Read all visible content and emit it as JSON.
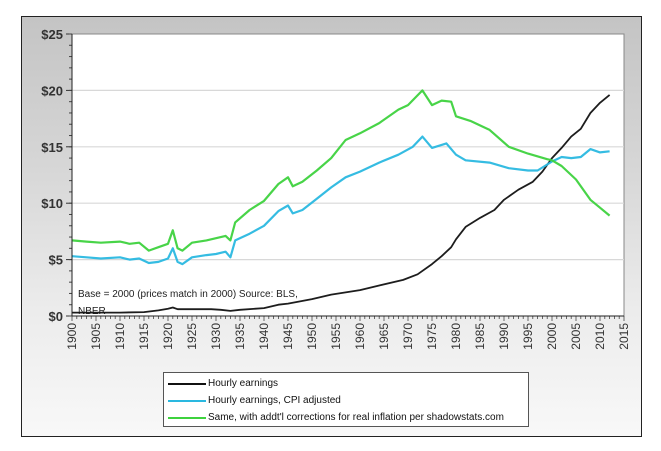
{
  "chart_data": {
    "type": "line",
    "title": "",
    "xlabel": "",
    "ylabel": "",
    "xlim": [
      1900,
      2015
    ],
    "ylim": [
      0,
      25
    ],
    "grid": true,
    "x_ticks": [
      "1900",
      "1905",
      "1910",
      "1915",
      "1920",
      "1925",
      "1930",
      "1935",
      "1940",
      "1945",
      "1950",
      "1955",
      "1960",
      "1965",
      "1970",
      "1975",
      "1980",
      "1985",
      "1990",
      "1995",
      "2000",
      "2005",
      "2010",
      "2015"
    ],
    "y_ticks": [
      0,
      5,
      10,
      15,
      20,
      25
    ],
    "y_tick_labels": [
      "$0",
      "$5",
      "$10",
      "$15",
      "$20",
      "$25"
    ],
    "annotation_line1": "Base = 2000 (prices match in 2000)      Source: BLS,",
    "annotation_line2": "NBER",
    "legend_position": "bottom",
    "series": [
      {
        "name": "Hourly earnings",
        "color": "#111111",
        "points": [
          [
            1900,
            0.3
          ],
          [
            1905,
            0.3
          ],
          [
            1910,
            0.3
          ],
          [
            1915,
            0.35
          ],
          [
            1918,
            0.5
          ],
          [
            1920,
            0.65
          ],
          [
            1921,
            0.75
          ],
          [
            1922,
            0.6
          ],
          [
            1925,
            0.6
          ],
          [
            1929,
            0.6
          ],
          [
            1931,
            0.55
          ],
          [
            1933,
            0.45
          ],
          [
            1935,
            0.55
          ],
          [
            1940,
            0.7
          ],
          [
            1943,
            1.0
          ],
          [
            1945,
            1.1
          ],
          [
            1950,
            1.5
          ],
          [
            1954,
            1.9
          ],
          [
            1960,
            2.3
          ],
          [
            1964,
            2.7
          ],
          [
            1969,
            3.2
          ],
          [
            1972,
            3.7
          ],
          [
            1975,
            4.6
          ],
          [
            1977,
            5.3
          ],
          [
            1979,
            6.1
          ],
          [
            1980,
            6.8
          ],
          [
            1982,
            7.9
          ],
          [
            1985,
            8.7
          ],
          [
            1988,
            9.4
          ],
          [
            1990,
            10.3
          ],
          [
            1993,
            11.2
          ],
          [
            1996,
            11.9
          ],
          [
            1998,
            12.8
          ],
          [
            2000,
            14.0
          ],
          [
            2002,
            14.9
          ],
          [
            2004,
            15.9
          ],
          [
            2006,
            16.6
          ],
          [
            2008,
            18.0
          ],
          [
            2010,
            18.9
          ],
          [
            2012,
            19.6
          ]
        ]
      },
      {
        "name": "Hourly earnings, CPI adjusted",
        "color": "#2ab8e0",
        "points": [
          [
            1900,
            5.3
          ],
          [
            1903,
            5.2
          ],
          [
            1906,
            5.1
          ],
          [
            1910,
            5.2
          ],
          [
            1912,
            5.0
          ],
          [
            1914,
            5.1
          ],
          [
            1916,
            4.7
          ],
          [
            1918,
            4.8
          ],
          [
            1920,
            5.1
          ],
          [
            1921,
            6.0
          ],
          [
            1922,
            4.8
          ],
          [
            1923,
            4.6
          ],
          [
            1925,
            5.2
          ],
          [
            1928,
            5.4
          ],
          [
            1930,
            5.5
          ],
          [
            1932,
            5.7
          ],
          [
            1933,
            5.2
          ],
          [
            1934,
            6.7
          ],
          [
            1937,
            7.3
          ],
          [
            1940,
            8.0
          ],
          [
            1943,
            9.3
          ],
          [
            1945,
            9.8
          ],
          [
            1946,
            9.1
          ],
          [
            1948,
            9.4
          ],
          [
            1951,
            10.4
          ],
          [
            1954,
            11.4
          ],
          [
            1957,
            12.3
          ],
          [
            1960,
            12.8
          ],
          [
            1964,
            13.6
          ],
          [
            1968,
            14.3
          ],
          [
            1971,
            15.0
          ],
          [
            1973,
            15.9
          ],
          [
            1975,
            14.9
          ],
          [
            1978,
            15.3
          ],
          [
            1980,
            14.3
          ],
          [
            1982,
            13.8
          ],
          [
            1987,
            13.6
          ],
          [
            1991,
            13.1
          ],
          [
            1995,
            12.9
          ],
          [
            1997,
            12.9
          ],
          [
            2000,
            13.7
          ],
          [
            2002,
            14.1
          ],
          [
            2004,
            14.0
          ],
          [
            2006,
            14.1
          ],
          [
            2008,
            14.8
          ],
          [
            2010,
            14.5
          ],
          [
            2012,
            14.6
          ]
        ]
      },
      {
        "name": "Same, with addt'l corrections for real inflation per shadowstats.com",
        "color": "#3ed23e",
        "points": [
          [
            1900,
            6.7
          ],
          [
            1903,
            6.6
          ],
          [
            1906,
            6.5
          ],
          [
            1910,
            6.6
          ],
          [
            1912,
            6.4
          ],
          [
            1914,
            6.5
          ],
          [
            1916,
            5.8
          ],
          [
            1918,
            6.1
          ],
          [
            1920,
            6.4
          ],
          [
            1921,
            7.6
          ],
          [
            1922,
            6.0
          ],
          [
            1923,
            5.8
          ],
          [
            1925,
            6.5
          ],
          [
            1928,
            6.7
          ],
          [
            1930,
            6.9
          ],
          [
            1932,
            7.1
          ],
          [
            1933,
            6.7
          ],
          [
            1934,
            8.3
          ],
          [
            1937,
            9.4
          ],
          [
            1940,
            10.2
          ],
          [
            1943,
            11.7
          ],
          [
            1945,
            12.3
          ],
          [
            1946,
            11.5
          ],
          [
            1948,
            11.9
          ],
          [
            1951,
            12.9
          ],
          [
            1954,
            14.0
          ],
          [
            1957,
            15.6
          ],
          [
            1960,
            16.2
          ],
          [
            1964,
            17.1
          ],
          [
            1968,
            18.3
          ],
          [
            1970,
            18.7
          ],
          [
            1973,
            20.0
          ],
          [
            1975,
            18.7
          ],
          [
            1977,
            19.1
          ],
          [
            1979,
            19.0
          ],
          [
            1980,
            17.7
          ],
          [
            1983,
            17.3
          ],
          [
            1987,
            16.5
          ],
          [
            1991,
            15.0
          ],
          [
            1995,
            14.4
          ],
          [
            1999,
            13.9
          ],
          [
            2000,
            13.8
          ],
          [
            2002,
            13.3
          ],
          [
            2005,
            12.1
          ],
          [
            2008,
            10.3
          ],
          [
            2010,
            9.6
          ],
          [
            2012,
            8.9
          ]
        ]
      }
    ]
  }
}
